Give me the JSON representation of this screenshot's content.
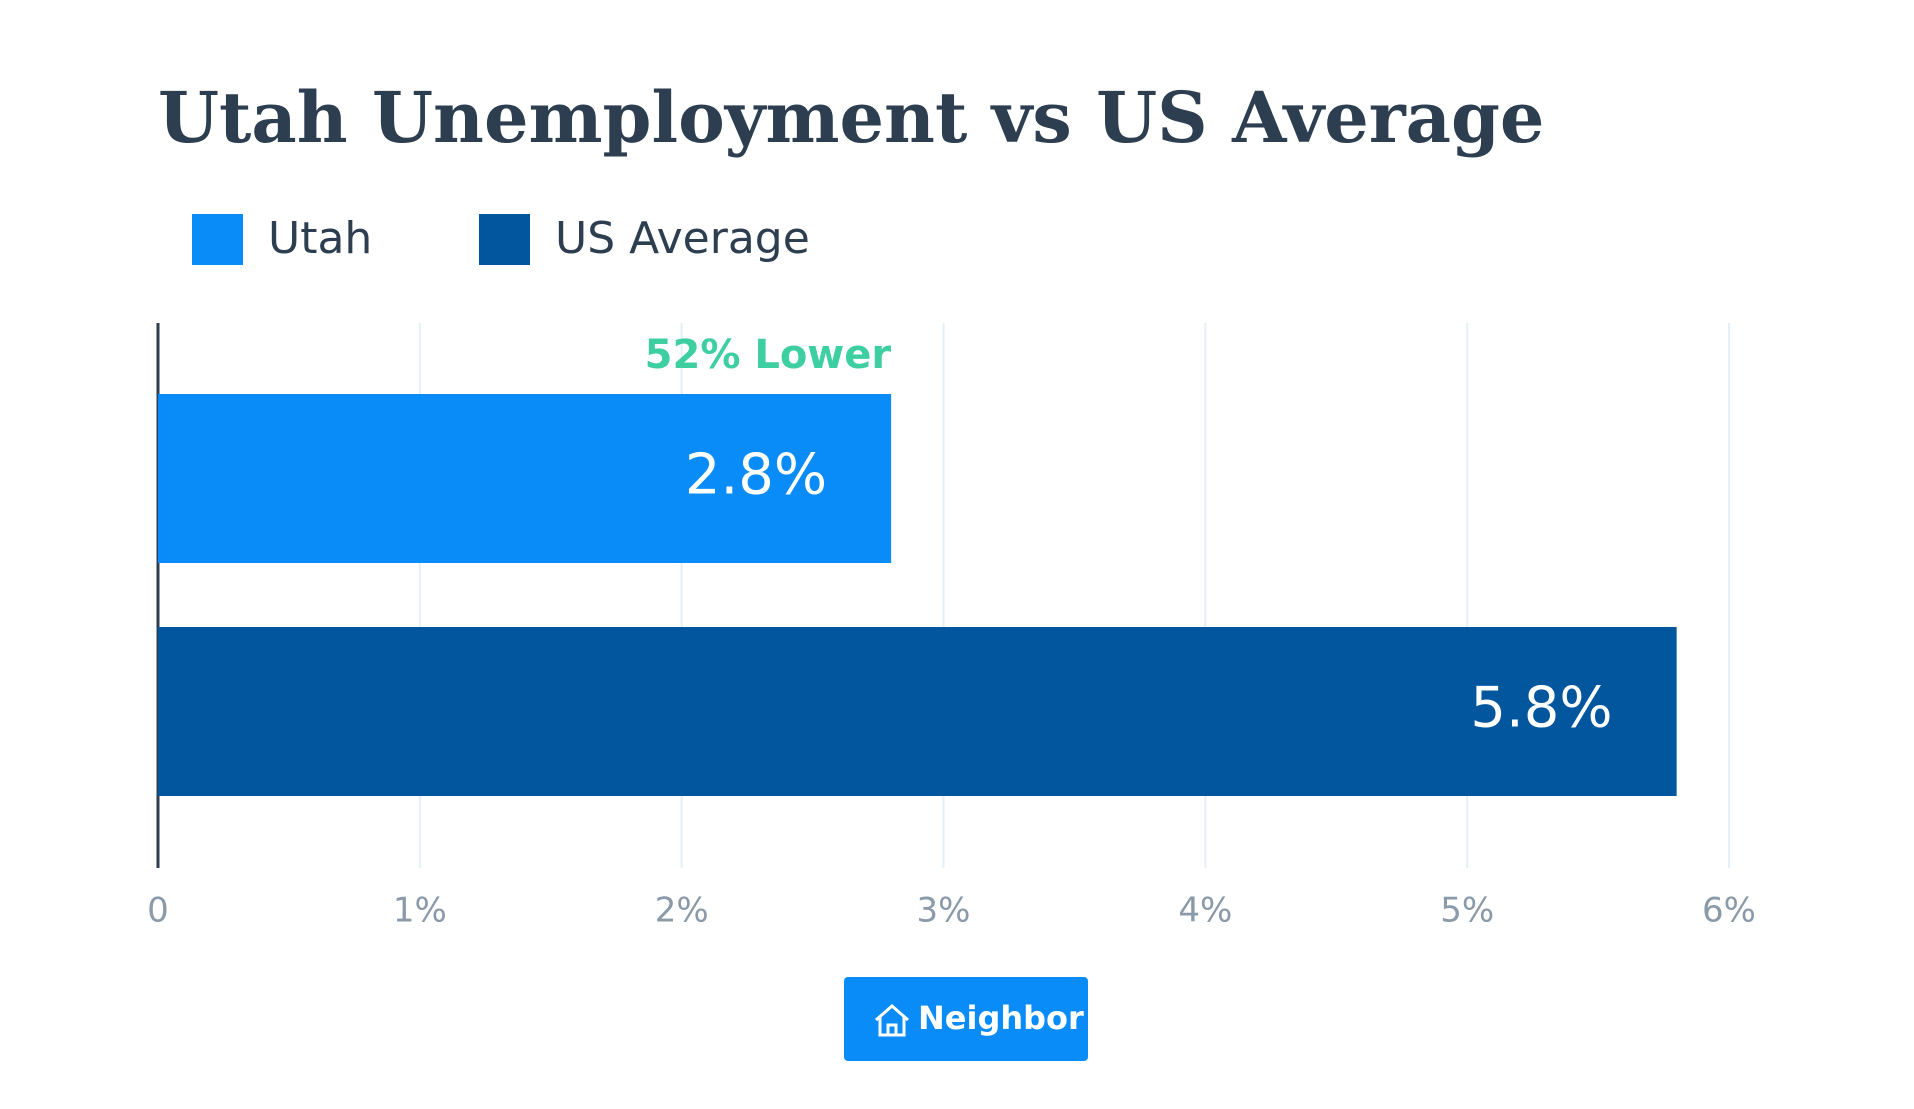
{
  "chart_data": {
    "type": "bar",
    "orientation": "horizontal",
    "title": "Utah Unemployment vs US Average",
    "categories": [
      "Utah",
      "US Average"
    ],
    "values": [
      2.8,
      5.8
    ],
    "value_labels": [
      "2.8%",
      "5.8%"
    ],
    "colors": [
      "#0a8cf8",
      "#02569e"
    ],
    "annotation": "52% Lower",
    "xlim": [
      0,
      6
    ],
    "xticks": [
      0,
      {
        "value": 1,
        "label": "1%"
      },
      {
        "value": 2,
        "label": "2%"
      },
      {
        "value": 3,
        "label": "3%"
      },
      {
        "value": 4,
        "label": "4%"
      },
      {
        "value": 5,
        "label": "5%"
      },
      {
        "value": 6,
        "label": "6%"
      }
    ],
    "grid": true,
    "legend": "top-left"
  },
  "logo": "Neighbor"
}
